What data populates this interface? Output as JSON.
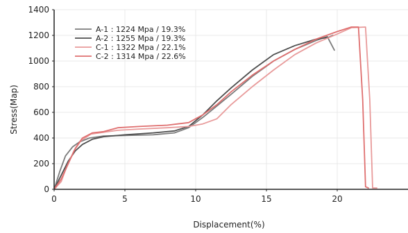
{
  "chart_data": {
    "type": "line",
    "title": "",
    "xlabel": "Displacement(%)",
    "ylabel": "Stress(Map)",
    "xlim": [
      0,
      25
    ],
    "ylim": [
      0,
      1400
    ],
    "x_ticks": [
      0,
      5,
      10,
      15,
      20
    ],
    "y_ticks": [
      0,
      200,
      400,
      600,
      800,
      1000,
      1200,
      1400
    ],
    "grid": true,
    "legend": "top-left",
    "series": [
      {
        "name": "A-1 : 1224 Mpa / 19.3%",
        "color": "#7b7b7b",
        "x": [
          0,
          0.4,
          0.8,
          1.3,
          1.8,
          2.5,
          3.5,
          5,
          7,
          8.5,
          9.5,
          10.5,
          11.5,
          12.5,
          14,
          15.5,
          17,
          18.5,
          19.3,
          19.8
        ],
        "y": [
          0,
          140,
          260,
          330,
          370,
          400,
          415,
          420,
          425,
          440,
          480,
          560,
          650,
          740,
          880,
          1000,
          1090,
          1160,
          1190,
          1085
        ]
      },
      {
        "name": "A-2 : 1255 Mpa / 19.3%",
        "color": "#4e4e4e",
        "x": [
          0,
          0.5,
          1,
          1.5,
          2,
          2.7,
          3.5,
          5,
          7,
          8.5,
          9.5,
          10.5,
          11.5,
          12.5,
          14,
          15.5,
          17,
          18.5,
          19.4,
          19.7
        ],
        "y": [
          0,
          110,
          220,
          300,
          350,
          390,
          410,
          425,
          440,
          455,
          490,
          580,
          690,
          790,
          930,
          1050,
          1120,
          1170,
          1185,
          1200
        ]
      },
      {
        "name": "C-1 : 1322 Mpa / 22.1%",
        "color": "#e89a9a",
        "x": [
          0,
          0.5,
          0.9,
          1.4,
          1.9,
          2.6,
          3.5,
          4.5,
          6,
          8,
          9.5,
          10.5,
          11.5,
          12.5,
          14,
          15.5,
          17,
          18.5,
          20,
          21,
          22,
          22.3,
          22.5,
          22.8
        ],
        "y": [
          0,
          60,
          180,
          300,
          380,
          430,
          445,
          460,
          470,
          480,
          490,
          510,
          550,
          660,
          800,
          930,
          1050,
          1140,
          1210,
          1260,
          1265,
          700,
          10,
          10
        ]
      },
      {
        "name": "C-2 : 1314 Mpa / 22.6%",
        "color": "#df6f6f",
        "x": [
          0,
          0.5,
          1,
          1.5,
          2,
          2.7,
          3.5,
          4.5,
          6,
          8,
          9.5,
          10.5,
          11.5,
          12.5,
          14,
          15.5,
          17,
          18.5,
          20,
          21,
          21.5,
          21.8,
          22,
          22.2
        ],
        "y": [
          0,
          80,
          200,
          320,
          400,
          440,
          450,
          480,
          490,
          500,
          520,
          580,
          660,
          760,
          890,
          1000,
          1090,
          1170,
          1230,
          1265,
          1265,
          700,
          20,
          10
        ]
      }
    ]
  }
}
